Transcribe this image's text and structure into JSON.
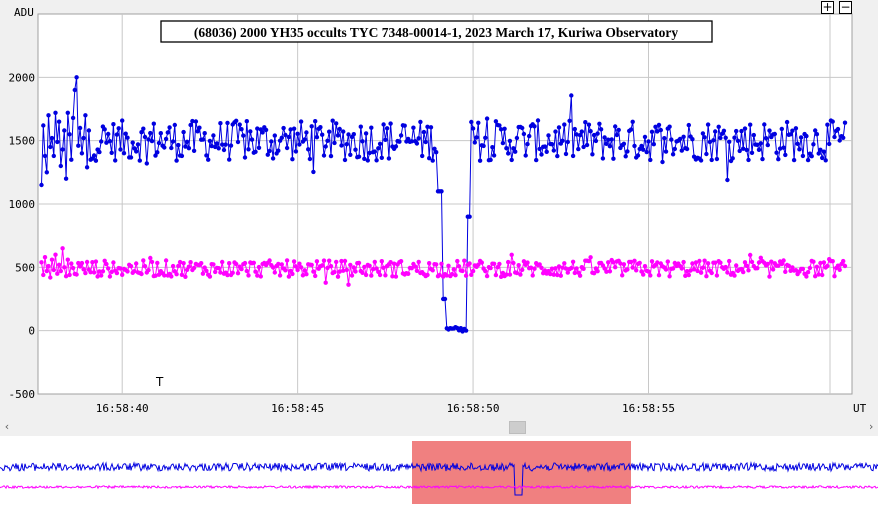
{
  "title": "(68036) 2000 YH35 occults TYC 7348-00014-1, 2023 March 17, Kuriwa Observatory",
  "zoom": {
    "in_label": "+",
    "out_label": "−"
  },
  "marker_label": "T",
  "scroll": {
    "left_glyph": "‹",
    "right_glyph": "›"
  },
  "colors": {
    "target": "#0000e0",
    "comparison": "#ff00ff",
    "selection": "#f08080",
    "grid": "#c8c8c8"
  },
  "chart_data": {
    "type": "line",
    "title": "(68036) 2000 YH35 occults TYC 7348-00014-1, 2023 March 17, Kuriwa Observatory",
    "ylabel": "ADU",
    "xlabel": "UT",
    "ylim": [
      -500,
      2500
    ],
    "yticks": [
      -500,
      0,
      500,
      1000,
      1500,
      2000
    ],
    "ytick_labels": [
      "-500",
      "0",
      "500",
      "1000",
      "1500",
      "2000"
    ],
    "xlim": [
      "16:58:37.6",
      "16:58:60.8"
    ],
    "xticks": [
      "16:58:40",
      "16:58:45",
      "16:58:50",
      "16:58:55"
    ],
    "grid": true,
    "series": [
      {
        "description_visible": false,
        "color": "#0000e0",
        "time_start": "16:58:37.7",
        "time_step_s": 0.05,
        "baseline": 1500,
        "noise_amplitude": 160,
        "event": {
          "start": "16:58:49.0",
          "end": "16:58:49.9",
          "level": 10
        },
        "values_sample": [
          1150,
          1620,
          1380,
          1250,
          1700,
          1450,
          1520,
          1380,
          1720,
          1490,
          1650,
          1300,
          1430,
          1580,
          1200,
          1720,
          1550,
          1350,
          1680,
          1900,
          2000,
          1460,
          1600,
          1400,
          1520,
          1700,
          1290,
          1580,
          1350
        ]
      },
      {
        "color": "#ff00ff",
        "time_start": "16:58:37.7",
        "time_step_s": 0.05,
        "baseline": 490,
        "noise_amplitude": 65,
        "values_sample": [
          540,
          440,
          580,
          470,
          510,
          420,
          560,
          480,
          600,
          450,
          520,
          470,
          650,
          500,
          430,
          560
        ]
      }
    ]
  }
}
